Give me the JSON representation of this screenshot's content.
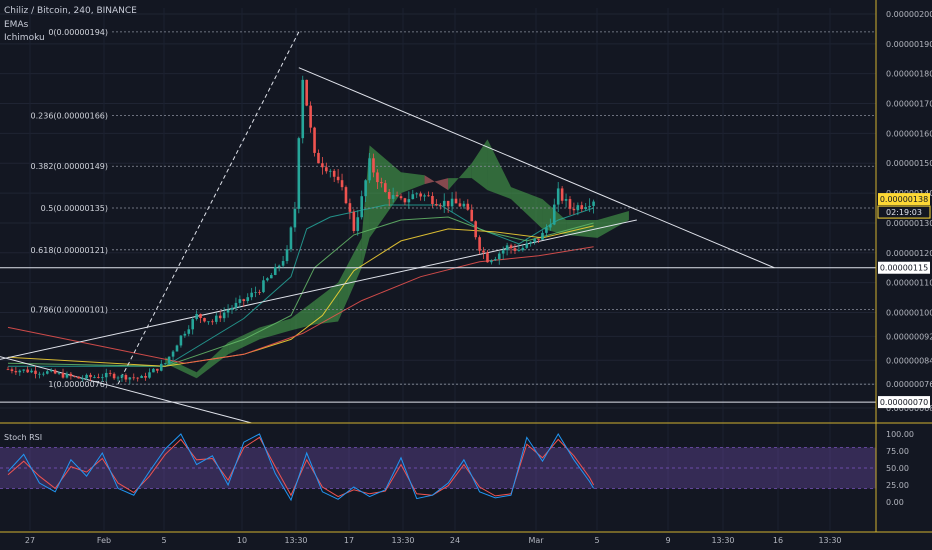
{
  "header": {
    "symbol_line": "Chiliz / Bitcoin, 240, BINANCE",
    "indicators": [
      "EMAs",
      "Ichimoku"
    ]
  },
  "colors": {
    "background": "#131722",
    "up_candle": "#26a69a",
    "down_candle": "#ef5350",
    "cloud_bull": "#4caf50",
    "cloud_bear": "#e57373",
    "rsi_band": "#7e57c2",
    "price_tag": "#fdd835"
  },
  "chart_data": [
    {
      "type": "candlestick",
      "title": "Chiliz / Bitcoin, 240, BINANCE",
      "y_axis_ticks": [
        "0.00000200",
        "0.00000190",
        "0.00000180",
        "0.00000170",
        "0.00000160",
        "0.00000150",
        "0.00000140",
        "0.00000130",
        "0.00000120",
        "0.00000110",
        "0.00000100",
        "0.00000092",
        "0.00000084",
        "0.00000076",
        "0.00000068"
      ],
      "ylim": [
        6.4e-07,
        2.02e-06
      ],
      "x_axis_ticks": [
        "27",
        "Feb",
        "5",
        "10",
        "13:30",
        "17",
        "13:30",
        "24",
        "Mar",
        "5",
        "9",
        "13:30",
        "16",
        "13:30"
      ],
      "current_price": "0.00000138",
      "countdown": "02:19:03",
      "support_label": "0.00000115",
      "support_level": 1.15e-06,
      "low_label": "0.00000070",
      "low_level": 7e-07,
      "fibonacci": [
        {
          "label": "0(0.00000194)",
          "value": 1.94e-06
        },
        {
          "label": "0.236(0.00000166)",
          "value": 1.66e-06
        },
        {
          "label": "0.382(0.00000149)",
          "value": 1.49e-06
        },
        {
          "label": "0.5(0.00000135)",
          "value": 1.35e-06
        },
        {
          "label": "0.618(0.00000121)",
          "value": 1.21e-06
        },
        {
          "label": "0.786(0.00000101)",
          "value": 1.01e-06
        },
        {
          "label": "1(0.00000076)",
          "value": 7.6e-07
        }
      ],
      "price_path": [
        [
          0,
          8.1e-07
        ],
        [
          10,
          8e-07
        ],
        [
          18,
          7.8e-07
        ],
        [
          26,
          7.9e-07
        ],
        [
          34,
          7.8e-07
        ],
        [
          40,
          8.3e-07
        ],
        [
          44,
          9.2e-07
        ],
        [
          48,
          9.9e-07
        ],
        [
          52,
          9.7e-07
        ],
        [
          56,
          1.01e-06
        ],
        [
          60,
          1.04e-06
        ],
        [
          64,
          1.08e-06
        ],
        [
          68,
          1.14e-06
        ],
        [
          71,
          1.2e-06
        ],
        [
          73,
          1.35e-06
        ],
        [
          74,
          1.6e-06
        ],
        [
          75,
          1.79e-06
        ],
        [
          76,
          1.7e-06
        ],
        [
          78,
          1.52e-06
        ],
        [
          82,
          1.48e-06
        ],
        [
          86,
          1.38e-06
        ],
        [
          88,
          1.28e-06
        ],
        [
          90,
          1.38e-06
        ],
        [
          92,
          1.5e-06
        ],
        [
          96,
          1.4e-06
        ],
        [
          100,
          1.37e-06
        ],
        [
          104,
          1.4e-06
        ],
        [
          110,
          1.37e-06
        ],
        [
          116,
          1.36e-06
        ],
        [
          118,
          1.3e-06
        ],
        [
          120,
          1.22e-06
        ],
        [
          122,
          1.18e-06
        ],
        [
          124,
          1.19e-06
        ],
        [
          127,
          1.22e-06
        ],
        [
          130,
          1.21e-06
        ],
        [
          133,
          1.23e-06
        ],
        [
          136,
          1.26e-06
        ],
        [
          138,
          1.31e-06
        ],
        [
          140,
          1.4e-06
        ],
        [
          143,
          1.35e-06
        ],
        [
          146,
          1.36e-06
        ],
        [
          149,
          1.38e-06
        ]
      ],
      "ema_fast": [
        [
          0,
          8.2e-07
        ],
        [
          40,
          8.2e-07
        ],
        [
          60,
          9.8e-07
        ],
        [
          72,
          1.12e-06
        ],
        [
          76,
          1.28e-06
        ],
        [
          82,
          1.32e-06
        ],
        [
          96,
          1.36e-06
        ],
        [
          110,
          1.36e-06
        ],
        [
          120,
          1.28e-06
        ],
        [
          130,
          1.23e-06
        ],
        [
          140,
          1.31e-06
        ],
        [
          149,
          1.35e-06
        ]
      ],
      "ema_mid": [
        [
          0,
          8.3e-07
        ],
        [
          40,
          8.2e-07
        ],
        [
          60,
          9.1e-07
        ],
        [
          72,
          9.9e-07
        ],
        [
          78,
          1.15e-06
        ],
        [
          88,
          1.26e-06
        ],
        [
          100,
          1.31e-06
        ],
        [
          112,
          1.32e-06
        ],
        [
          122,
          1.27e-06
        ],
        [
          132,
          1.24e-06
        ],
        [
          149,
          1.3e-06
        ]
      ],
      "ema_slow": [
        [
          0,
          8.5e-07
        ],
        [
          40,
          8.2e-07
        ],
        [
          60,
          8.6e-07
        ],
        [
          72,
          9.1e-07
        ],
        [
          80,
          9.9e-07
        ],
        [
          88,
          1.14e-06
        ],
        [
          100,
          1.24e-06
        ],
        [
          112,
          1.28e-06
        ],
        [
          124,
          1.27e-06
        ],
        [
          136,
          1.25e-06
        ],
        [
          149,
          1.29e-06
        ]
      ],
      "ema_long": [
        [
          0,
          9.5e-07
        ],
        [
          30,
          8.7e-07
        ],
        [
          45,
          8.3e-07
        ],
        [
          60,
          8.6e-07
        ],
        [
          75,
          9.3e-07
        ],
        [
          90,
          1.04e-06
        ],
        [
          105,
          1.12e-06
        ],
        [
          120,
          1.17e-06
        ],
        [
          135,
          1.19e-06
        ],
        [
          149,
          1.22e-06
        ]
      ],
      "cloud": [
        [
          40,
          8.5e-07,
          8.3e-07
        ],
        [
          48,
          8e-07,
          7.8e-07
        ],
        [
          56,
          9e-07,
          8.6e-07
        ],
        [
          64,
          9.5e-07,
          9.1e-07
        ],
        [
          72,
          9.8e-07,
          9.4e-07
        ],
        [
          78,
          1.04e-06,
          9.6e-07
        ],
        [
          84,
          1.1e-06,
          9.7e-07
        ],
        [
          90,
          1.25e-06,
          1.15e-06
        ],
        [
          92,
          1.56e-06,
          1.25e-06
        ],
        [
          100,
          1.47e-06,
          1.4e-06
        ],
        [
          106,
          1.46e-06,
          1.43e-06
        ],
        [
          112,
          1.41e-06,
          1.45e-06
        ],
        [
          118,
          1.5e-06,
          1.45e-06
        ],
        [
          122,
          1.58e-06,
          1.41e-06
        ],
        [
          128,
          1.42e-06,
          1.38e-06
        ],
        [
          136,
          1.38e-06,
          1.28e-06
        ],
        [
          142,
          1.31e-06,
          1.26e-06
        ],
        [
          150,
          1.31e-06,
          1.25e-06
        ],
        [
          158,
          1.34e-06,
          1.31e-06
        ]
      ],
      "trendline_down": [
        [
          74,
          1.82e-06
        ],
        [
          195,
          1.15e-06
        ]
      ],
      "trendline_up": [
        [
          -10,
          8.2e-07
        ],
        [
          160,
          1.31e-06
        ]
      ],
      "trendline_lower": [
        [
          -10,
          8.8e-07
        ],
        [
          62,
          6.3e-07
        ]
      ],
      "dashed_rise": [
        [
          28,
          7.6e-07
        ],
        [
          74,
          1.94e-06
        ]
      ]
    },
    {
      "type": "line",
      "title": "Stoch RSI",
      "y_axis_ticks": [
        "100.00",
        "75.00",
        "50.00",
        "25.00",
        "0.00"
      ],
      "ylim": [
        0,
        100
      ],
      "band": [
        20,
        80
      ],
      "k_series": [
        [
          0,
          45
        ],
        [
          4,
          70
        ],
        [
          8,
          28
        ],
        [
          12,
          15
        ],
        [
          16,
          62
        ],
        [
          20,
          38
        ],
        [
          24,
          72
        ],
        [
          28,
          20
        ],
        [
          32,
          10
        ],
        [
          36,
          45
        ],
        [
          40,
          78
        ],
        [
          44,
          100
        ],
        [
          48,
          55
        ],
        [
          52,
          68
        ],
        [
          56,
          25
        ],
        [
          60,
          88
        ],
        [
          64,
          100
        ],
        [
          68,
          42
        ],
        [
          72,
          3
        ],
        [
          76,
          72
        ],
        [
          80,
          15
        ],
        [
          84,
          4
        ],
        [
          88,
          22
        ],
        [
          92,
          8
        ],
        [
          96,
          18
        ],
        [
          100,
          65
        ],
        [
          104,
          5
        ],
        [
          108,
          10
        ],
        [
          112,
          28
        ],
        [
          116,
          62
        ],
        [
          120,
          15
        ],
        [
          124,
          6
        ],
        [
          128,
          10
        ],
        [
          132,
          95
        ],
        [
          136,
          60
        ],
        [
          140,
          100
        ],
        [
          144,
          62
        ],
        [
          148,
          30
        ],
        [
          149,
          20
        ]
      ],
      "d_series": [
        [
          0,
          40
        ],
        [
          4,
          60
        ],
        [
          8,
          38
        ],
        [
          12,
          20
        ],
        [
          16,
          52
        ],
        [
          20,
          44
        ],
        [
          24,
          64
        ],
        [
          28,
          28
        ],
        [
          32,
          14
        ],
        [
          36,
          38
        ],
        [
          40,
          70
        ],
        [
          44,
          92
        ],
        [
          48,
          62
        ],
        [
          52,
          64
        ],
        [
          56,
          32
        ],
        [
          60,
          80
        ],
        [
          64,
          95
        ],
        [
          68,
          52
        ],
        [
          72,
          10
        ],
        [
          76,
          62
        ],
        [
          80,
          22
        ],
        [
          84,
          8
        ],
        [
          88,
          18
        ],
        [
          92,
          12
        ],
        [
          96,
          16
        ],
        [
          100,
          55
        ],
        [
          104,
          12
        ],
        [
          108,
          10
        ],
        [
          112,
          24
        ],
        [
          116,
          55
        ],
        [
          120,
          22
        ],
        [
          124,
          9
        ],
        [
          128,
          12
        ],
        [
          132,
          85
        ],
        [
          136,
          65
        ],
        [
          140,
          92
        ],
        [
          144,
          68
        ],
        [
          148,
          36
        ],
        [
          149,
          25
        ]
      ]
    }
  ]
}
